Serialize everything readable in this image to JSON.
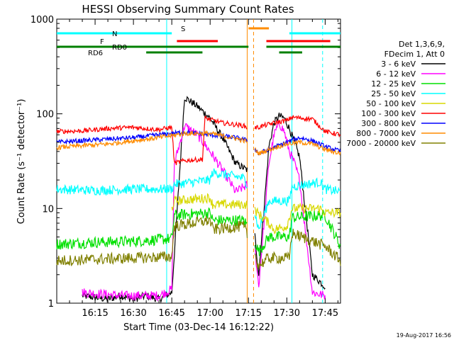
{
  "chart_data": {
    "type": "line",
    "title": "HESSI Observing Summary Count Rates",
    "xlabel": "Start Time (03-Dec-14 16:12:22)",
    "ylabel": "Count Rate (s⁻¹ detector⁻¹)",
    "footer": "19-Aug-2017 16:56",
    "yscale": "log",
    "ylim": [
      1,
      1000
    ],
    "xlim_minutes": [
      -15,
      96
    ],
    "xtick_minutes": [
      0,
      15,
      30,
      45,
      60,
      75,
      90
    ],
    "xticks": [
      "16:15",
      "16:30",
      "16:45",
      "17:00",
      "17:15",
      "17:30",
      "17:45"
    ],
    "yticks": [
      {
        "v": 1,
        "label": "1"
      },
      {
        "v": 10,
        "label": "10"
      },
      {
        "v": 100,
        "label": "100"
      },
      {
        "v": 1000,
        "label": "1000"
      }
    ],
    "info_lines": [
      "Det 1,3,6,9,",
      "FDecim 1, Att 0"
    ],
    "legend": [
      {
        "name": "3 - 6 keV",
        "color": "#000000"
      },
      {
        "name": "6 - 12 keV",
        "color": "#ff00ff"
      },
      {
        "name": "12 - 25 keV",
        "color": "#00e000"
      },
      {
        "name": "25 - 50 keV",
        "color": "#00ffff"
      },
      {
        "name": "50 - 100 keV",
        "color": "#d8d800"
      },
      {
        "name": "100 - 300 keV",
        "color": "#ff0000"
      },
      {
        "name": "300 - 800 keV",
        "color": "#0000ff"
      },
      {
        "name": "800 - 7000 keV",
        "color": "#ff8c00"
      },
      {
        "name": "7000 - 20000 keV",
        "color": "#808000"
      }
    ],
    "state_bars": [
      {
        "label": "N",
        "color": "#00ffff",
        "ranges": [
          [
            -15,
            30
          ],
          [
            76,
            96
          ]
        ],
        "y": 1.8
      },
      {
        "label": "S",
        "color": "#ff8c00",
        "ranges": [
          [
            60,
            68
          ]
        ],
        "y": 1.85
      },
      {
        "label": "F",
        "color": "#ff0000",
        "ranges": [
          [
            32,
            48
          ],
          [
            67,
            92
          ]
        ],
        "y": 1.82
      },
      {
        "label": "RD0",
        "color": "#008000",
        "ranges": [
          [
            -15,
            60
          ],
          [
            67,
            96
          ]
        ],
        "y": 1.78
      },
      {
        "label": "RD6",
        "color": "#008000",
        "ranges": [
          [
            20,
            42
          ],
          [
            72,
            81
          ]
        ],
        "y": 1.75
      }
    ],
    "vlines": [
      {
        "x": 28,
        "color": "#00ffff",
        "dash": false
      },
      {
        "x": 59.5,
        "color": "#ff8c00",
        "dash": false
      },
      {
        "x": 62,
        "color": "#ff8c00",
        "dash": true
      },
      {
        "x": 77,
        "color": "#00ffff",
        "dash": false
      },
      {
        "x": 89,
        "color": "#00ffff",
        "dash": true
      }
    ],
    "gap": [
      58,
      64
    ],
    "series": [
      {
        "name": "3 - 6 keV",
        "color": "#000000",
        "noise": 0.04,
        "x": [
          -5,
          5,
          10,
          15,
          20,
          25,
          30,
          35,
          40,
          45,
          50,
          55,
          60,
          64,
          68,
          70,
          72,
          74,
          76,
          78,
          80,
          85,
          90
        ],
        "y": [
          1.2,
          1.1,
          1.2,
          1.1,
          1.2,
          1.1,
          1.3,
          150,
          120,
          90,
          55,
          30,
          25,
          2,
          45,
          80,
          95,
          90,
          70,
          50,
          35,
          2,
          1.5
        ]
      },
      {
        "name": "6 - 12 keV",
        "color": "#ff00ff",
        "noise": 0.05,
        "x": [
          -5,
          10,
          25,
          30,
          31,
          35,
          40,
          45,
          50,
          55,
          60,
          64,
          68,
          70,
          72,
          74,
          76,
          78,
          80,
          85,
          90
        ],
        "y": [
          1.3,
          1.2,
          1.2,
          1.4,
          30,
          75,
          60,
          40,
          25,
          15,
          18,
          1.5,
          30,
          60,
          80,
          65,
          40,
          30,
          20,
          1.3,
          1.2
        ]
      },
      {
        "name": "12 - 25 keV",
        "color": "#00e000",
        "noise": 0.06,
        "x": [
          -15,
          0,
          15,
          30,
          31,
          45,
          46,
          58,
          60,
          64,
          68,
          76,
          77,
          90,
          96
        ],
        "y": [
          4.2,
          4.4,
          4.5,
          4.8,
          8.5,
          9,
          7.5,
          7.5,
          6.5,
          3.5,
          5,
          5,
          8,
          8.5,
          4
        ]
      },
      {
        "name": "25 - 50 keV",
        "color": "#00ffff",
        "noise": 0.05,
        "x": [
          -15,
          0,
          15,
          30,
          31,
          45,
          46,
          58,
          60,
          64,
          68,
          76,
          77,
          88,
          90,
          96
        ],
        "y": [
          16,
          15.5,
          16,
          16,
          18,
          20,
          24,
          21,
          17,
          6,
          12,
          12,
          17,
          19,
          16,
          15
        ]
      },
      {
        "name": "50 - 100 keV",
        "color": "#d8d800",
        "noise": 0.05,
        "x": [
          30,
          31,
          45,
          46,
          58,
          60,
          68,
          70,
          75,
          76,
          77,
          88,
          90,
          96
        ],
        "y": [
          10,
          12,
          13,
          11,
          11,
          11,
          7,
          6,
          6.5,
          8,
          10,
          10,
          9,
          9
        ]
      },
      {
        "name": "100 - 300 keV",
        "color": "#ff0000",
        "noise": 0.025,
        "x": [
          -15,
          -5,
          5,
          15,
          25,
          30,
          31,
          35,
          42,
          43,
          50,
          58,
          60,
          64,
          66,
          70,
          75,
          77,
          85,
          90,
          96
        ],
        "y": [
          65,
          66,
          70,
          72,
          68,
          72,
          30,
          32,
          33,
          90,
          80,
          75,
          70,
          72,
          75,
          80,
          85,
          92,
          88,
          65,
          60
        ]
      },
      {
        "name": "300 - 800 keV",
        "color": "#0000ff",
        "noise": 0.025,
        "x": [
          -15,
          -5,
          5,
          15,
          25,
          35,
          45,
          55,
          60,
          64,
          68,
          75,
          80,
          85,
          90,
          96
        ],
        "y": [
          50,
          52,
          54,
          56,
          60,
          64,
          60,
          56,
          52,
          38,
          42,
          50,
          56,
          52,
          45,
          40
        ]
      },
      {
        "name": "800 - 7000 keV",
        "color": "#ff8c00",
        "noise": 0.025,
        "x": [
          -15,
          -5,
          5,
          15,
          25,
          35,
          45,
          55,
          60,
          64,
          68,
          75,
          80,
          85,
          90,
          96
        ],
        "y": [
          44,
          46,
          48,
          52,
          56,
          62,
          62,
          55,
          50,
          38,
          42,
          48,
          50,
          48,
          42,
          38
        ]
      },
      {
        "name": "7000 - 20000 keV",
        "color": "#808000",
        "noise": 0.06,
        "x": [
          -15,
          0,
          15,
          30,
          31,
          45,
          46,
          58,
          60,
          64,
          68,
          76,
          77,
          90,
          96
        ],
        "y": [
          2.8,
          2.9,
          3,
          3.1,
          6.5,
          7.5,
          6,
          6.5,
          5,
          2.5,
          3,
          3,
          5.5,
          4,
          2.8
        ]
      }
    ]
  }
}
